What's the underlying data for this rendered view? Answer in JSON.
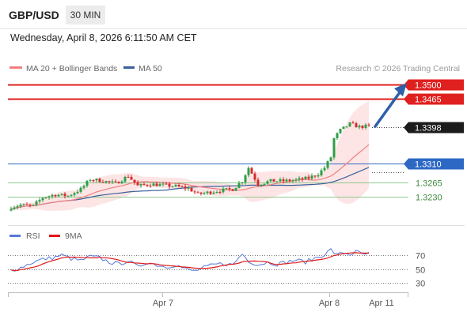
{
  "header": {
    "symbol": "GBP/USD",
    "timeframe": "30 MIN",
    "datetime": "Wednesday, April 8, 2026 6:11:50 AM CET"
  },
  "legend": {
    "ma20_label": "MA 20 + Bollinger Bands",
    "ma50_label": "MA 50",
    "credit": "Research © 2026 Trading Central",
    "rsi_label": "RSI",
    "rsi_ma_label": "9MA"
  },
  "colors": {
    "resistance": "#e0201e",
    "pivot": "#2d68c4",
    "support": "#8ec98e",
    "last": "#1c1c1c",
    "ma20": "#f08080",
    "ma50": "#3a5f9a",
    "bull": "#2d9e47",
    "bear": "#d42a2a",
    "band": "#fde0e0",
    "rsi": "#5878d8",
    "rsi_ma": "#e01818",
    "arrow": "#2e5fa8"
  },
  "chart_data": {
    "type": "candlestick",
    "symbol": "GBP/USD",
    "interval": "30 MIN",
    "ylim": [
      1.309,
      1.3515
    ],
    "x_ticks": [
      "Apr 7",
      "Apr 8",
      "Apr 11"
    ],
    "levels": [
      {
        "value": "1.3500",
        "role": "resistance"
      },
      {
        "value": "1.3465",
        "role": "resistance"
      },
      {
        "value": "1.3398",
        "role": "last"
      },
      {
        "value": "1.3310",
        "role": "pivot"
      },
      {
        "value": "1.3265",
        "role": "support"
      },
      {
        "value": "1.3230",
        "role": "support"
      }
    ],
    "ohlc_anchors": [
      [
        0,
        1.3205
      ],
      [
        3,
        1.321
      ],
      [
        7,
        1.3208
      ],
      [
        10,
        1.3228
      ],
      [
        14,
        1.3235
      ],
      [
        18,
        1.3232
      ],
      [
        22,
        1.3248
      ],
      [
        25,
        1.3272
      ],
      [
        29,
        1.3268
      ],
      [
        33,
        1.3262
      ],
      [
        37,
        1.328
      ],
      [
        40,
        1.3256
      ],
      [
        44,
        1.326
      ],
      [
        48,
        1.3258
      ],
      [
        52,
        1.3255
      ],
      [
        56,
        1.325
      ],
      [
        59,
        1.3236
      ],
      [
        62,
        1.324
      ],
      [
        66,
        1.3245
      ],
      [
        70,
        1.3248
      ],
      [
        73,
        1.3268
      ],
      [
        75,
        1.33
      ],
      [
        78,
        1.326
      ],
      [
        82,
        1.3268
      ],
      [
        86,
        1.3268
      ],
      [
        90,
        1.327
      ],
      [
        94,
        1.3275
      ],
      [
        97,
        1.3285
      ],
      [
        99,
        1.33
      ],
      [
        100,
        1.3312
      ],
      [
        101,
        1.3325
      ],
      [
        102,
        1.337
      ],
      [
        104,
        1.339
      ],
      [
        107,
        1.3405
      ],
      [
        110,
        1.3398
      ],
      [
        113,
        1.34
      ]
    ],
    "rsi": {
      "levels": [
        70,
        50,
        30
      ],
      "ylim": [
        20,
        80
      ],
      "anchors": [
        [
          0,
          48
        ],
        [
          3,
          52
        ],
        [
          7,
          60
        ],
        [
          10,
          64
        ],
        [
          13,
          66
        ],
        [
          16,
          70
        ],
        [
          19,
          65
        ],
        [
          22,
          62
        ],
        [
          25,
          68
        ],
        [
          28,
          66
        ],
        [
          31,
          60
        ],
        [
          34,
          57
        ],
        [
          37,
          62
        ],
        [
          40,
          53
        ],
        [
          43,
          60
        ],
        [
          46,
          56
        ],
        [
          49,
          53
        ],
        [
          52,
          56
        ],
        [
          55,
          50
        ],
        [
          58,
          47
        ],
        [
          61,
          52
        ],
        [
          64,
          56
        ],
        [
          67,
          58
        ],
        [
          70,
          56
        ],
        [
          73,
          72
        ],
        [
          75,
          62
        ],
        [
          78,
          56
        ],
        [
          81,
          60
        ],
        [
          84,
          57
        ],
        [
          87,
          60
        ],
        [
          90,
          63
        ],
        [
          93,
          60
        ],
        [
          96,
          66
        ],
        [
          99,
          71
        ],
        [
          101,
          78
        ],
        [
          103,
          70
        ],
        [
          105,
          74
        ],
        [
          107,
          71
        ],
        [
          109,
          75
        ],
        [
          111,
          71
        ],
        [
          113,
          72
        ]
      ]
    }
  }
}
